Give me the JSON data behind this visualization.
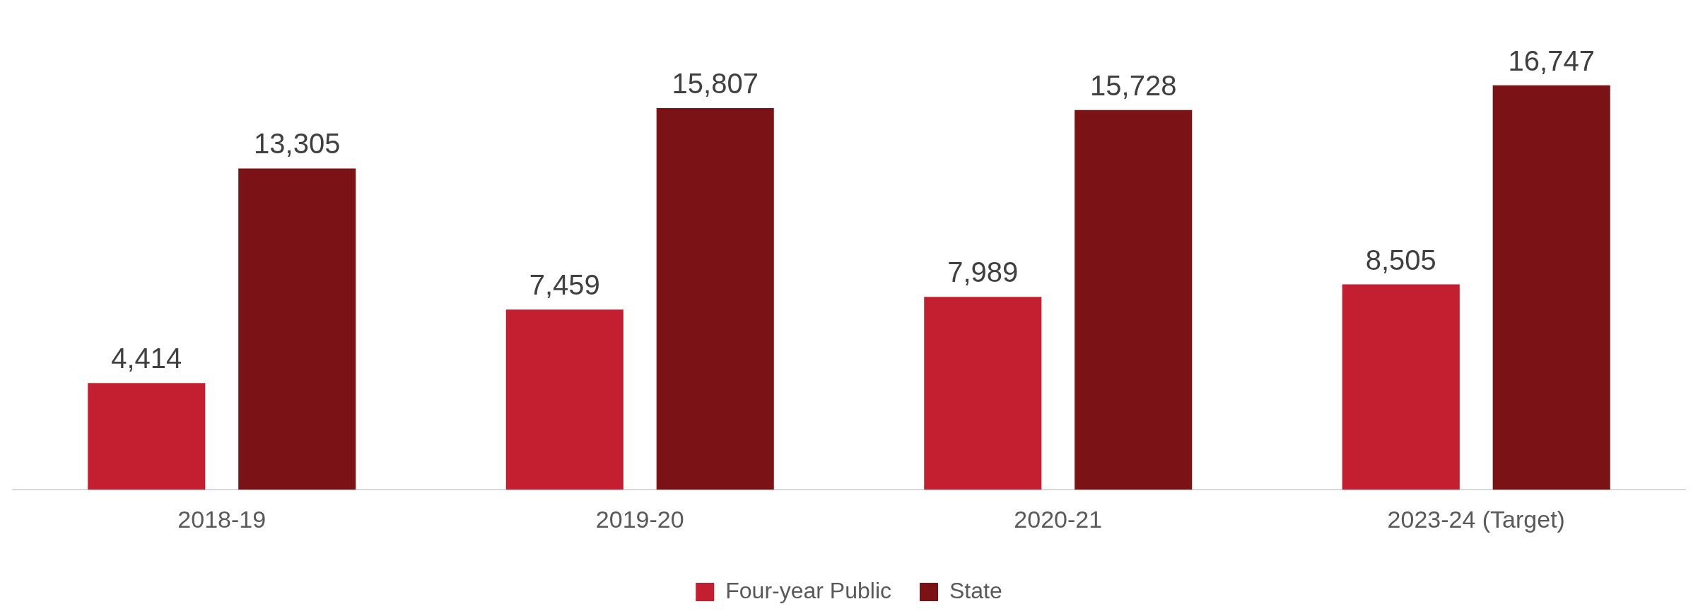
{
  "chart_data": {
    "type": "bar",
    "categories": [
      "2018-19",
      "2019-20",
      "2020-21",
      "2023-24 (Target)"
    ],
    "series": [
      {
        "name": "Four-year Public",
        "color": "#c41f31",
        "values": [
          4414,
          7459,
          7989,
          8505
        ],
        "value_labels": [
          "4,414",
          "7,459",
          "7,989",
          "8,505"
        ]
      },
      {
        "name": "State",
        "color": "#7b1216",
        "values": [
          13305,
          15807,
          15728,
          16747
        ],
        "value_labels": [
          "13,305",
          "15,807",
          "15,728",
          "16,747"
        ]
      }
    ],
    "tick_labels": "x",
    "legend": "bottom",
    "grid": false
  }
}
